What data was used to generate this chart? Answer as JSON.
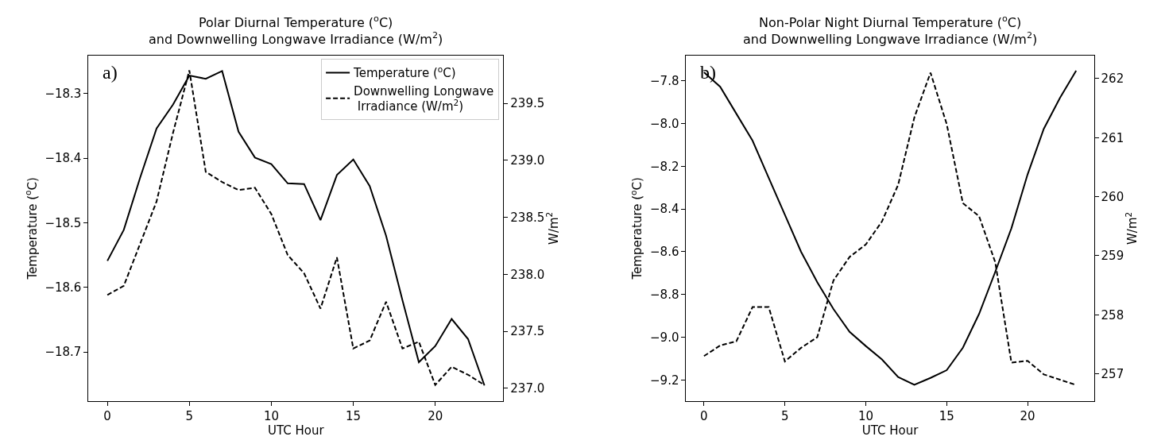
{
  "chart_data": [
    {
      "type": "line",
      "title": "Polar Diurnal Temperature ($^{o}$C)\nand Downwelling Longwave Irradiance (W/m$^{2}$)",
      "xlabel": "UTC Hour",
      "ylabel": "Temperature ($^{o}$C)",
      "y2label": "W/m$^{2}$",
      "annotations": [
        "a)"
      ],
      "x": [
        0,
        1,
        2,
        3,
        4,
        5,
        6,
        7,
        8,
        9,
        10,
        11,
        12,
        13,
        14,
        15,
        16,
        17,
        18,
        19,
        20,
        21,
        22,
        23
      ],
      "series": [
        {
          "name": "Temperature ($^{o}$C)",
          "color": "#000000",
          "line_style": "solid",
          "values": [
            -18.559,
            -18.511,
            -18.43,
            -18.354,
            -18.317,
            -18.272,
            -18.277,
            -18.265,
            -18.359,
            -18.399,
            -18.409,
            -18.439,
            -18.44,
            -18.496,
            -18.426,
            -18.402,
            -18.443,
            -18.52,
            -18.62,
            -18.716,
            -18.691,
            -18.649,
            -18.68,
            -18.752
          ]
        },
        {
          "name": "Downwelling Longwave\n Irradiance (W/m$^{2}$)",
          "color": "#000000",
          "line_style": "dashed",
          "axis": "y2",
          "values": [
            237.82,
            237.9,
            238.27,
            238.64,
            239.24,
            239.79,
            238.9,
            238.81,
            238.74,
            238.76,
            238.53,
            238.17,
            238.01,
            237.7,
            238.15,
            237.35,
            237.42,
            237.76,
            237.35,
            237.41,
            237.03,
            237.19,
            237.12,
            237.03
          ]
        }
      ],
      "xlim": [
        -1.15,
        24.15
      ],
      "xticks": [
        0,
        5,
        10,
        15,
        20
      ],
      "ylim": [
        -18.776,
        -18.241
      ],
      "yticks": [
        -18.3,
        -18.4,
        -18.5,
        -18.6,
        -18.7
      ],
      "y2lim": [
        236.89,
        239.92
      ],
      "y2ticks": [
        {
          "value": 237,
          "label": "237.0"
        },
        237.5,
        {
          "value": 238,
          "label": "238.0"
        },
        238.5,
        {
          "value": 239,
          "label": "239.0"
        },
        239.5
      ],
      "legend": "top right"
    },
    {
      "type": "line",
      "title": "Non-Polar Night Diurnal Temperature ($^{o}$C)\nand Downwelling Longwave Irradiance (W/m$^{2}$)",
      "xlabel": "UTC Hour",
      "ylabel": "Temperature ($^{o}$C)",
      "y2label": "W/m$^{2}$",
      "annotations": [
        "b)"
      ],
      "x": [
        0,
        1,
        2,
        3,
        4,
        5,
        6,
        7,
        8,
        9,
        10,
        11,
        12,
        13,
        14,
        15,
        16,
        17,
        18,
        19,
        20,
        21,
        22,
        23
      ],
      "series": [
        {
          "color": "#000000",
          "line_style": "solid",
          "values": [
            -7.76,
            -7.828,
            -7.954,
            -8.08,
            -8.254,
            -8.427,
            -8.6,
            -8.742,
            -8.868,
            -8.975,
            -9.041,
            -9.104,
            -9.186,
            -9.222,
            -9.19,
            -9.154,
            -9.049,
            -8.891,
            -8.694,
            -8.49,
            -8.238,
            -8.025,
            -7.88,
            -7.753
          ]
        },
        {
          "color": "#000000",
          "line_style": "dashed",
          "axis": "y2",
          "values": [
            257.3,
            257.48,
            257.55,
            258.13,
            258.13,
            257.21,
            257.44,
            257.62,
            258.58,
            258.98,
            259.19,
            259.58,
            260.2,
            261.34,
            262.1,
            261.23,
            259.89,
            259.67,
            258.89,
            257.19,
            257.22,
            256.99,
            256.9,
            256.81
          ]
        }
      ],
      "xlim": [
        -1.1,
        24.1
      ],
      "xticks": [
        0,
        5,
        10,
        15,
        20
      ],
      "ylim": [
        -9.298,
        -7.682
      ],
      "yticks": [
        -7.8,
        {
          "value": -8,
          "label": "−8.0"
        },
        -8.2,
        -8.4,
        -8.6,
        -8.8,
        {
          "value": -9,
          "label": "−9.0"
        },
        -9.2
      ],
      "y2lim": [
        256.54,
        262.39
      ],
      "y2ticks": [
        257,
        258,
        259,
        260,
        261,
        262
      ],
      "legend": false
    }
  ]
}
